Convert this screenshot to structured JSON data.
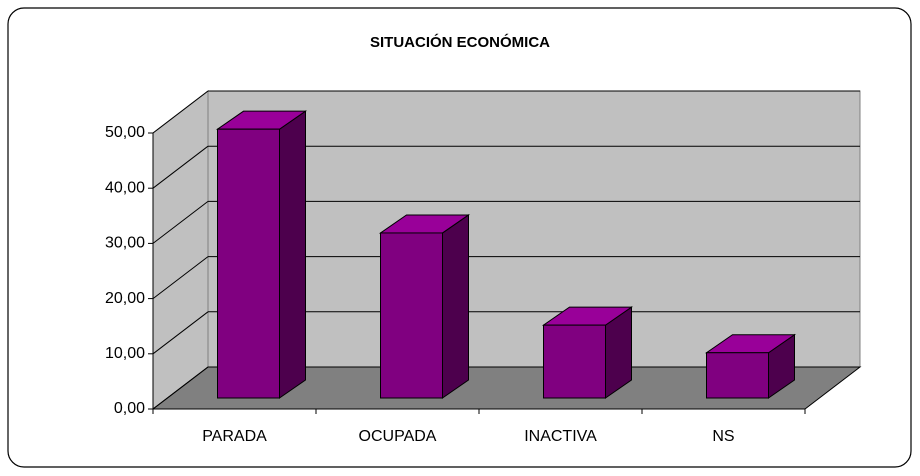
{
  "chart_data": {
    "type": "bar3d",
    "title": "SITUACIÓN ECONÓMICA",
    "categories": [
      "PARADA",
      "OCUPADA",
      "INACTIVA",
      "NS"
    ],
    "values": [
      48.7,
      29.9,
      13.2,
      8.2
    ],
    "color": "#800080",
    "ylim": [
      0,
      50
    ],
    "yticks": [
      {
        "value": 0,
        "label": "0,00"
      },
      {
        "value": 10,
        "label": "10,00"
      },
      {
        "value": 20,
        "label": "20,00"
      },
      {
        "value": 30,
        "label": "30,00"
      },
      {
        "value": 40,
        "label": "40,00"
      },
      {
        "value": 50,
        "label": "50,00"
      }
    ],
    "grid": true
  }
}
